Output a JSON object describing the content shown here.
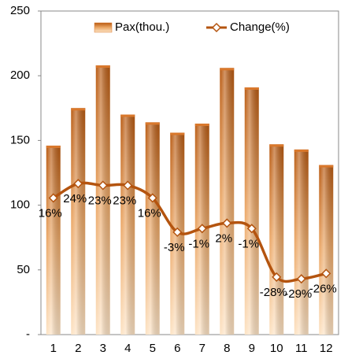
{
  "chart_data": {
    "type": "bar-line",
    "categories": [
      "1",
      "2",
      "3",
      "4",
      "5",
      "6",
      "7",
      "8",
      "9",
      "10",
      "11",
      "12"
    ],
    "series": [
      {
        "name": "Pax(thou.)",
        "type": "bar",
        "color": "#d9782c",
        "values": [
          146,
          175,
          208,
          170,
          164,
          156,
          163,
          206,
          191,
          147,
          143,
          131
        ]
      },
      {
        "name": "Change(%)",
        "type": "line",
        "axis": "y2",
        "color": "#b4540f",
        "values": [
          16,
          24,
          23,
          23,
          16,
          -3,
          -1,
          2,
          -1,
          -28,
          -29,
          -26
        ],
        "value_labels": [
          "16%",
          "24%",
          "23%",
          "23%",
          "16%",
          "-3%",
          "-1%",
          "2%",
          "-1%",
          "-28%",
          "-29%",
          "-26%"
        ]
      }
    ],
    "ylim": [
      0,
      250
    ],
    "yticks": [
      {
        "value": 0,
        "label": "-"
      },
      50,
      100,
      150,
      200,
      250
    ],
    "y2lim": [
      -60,
      120
    ],
    "legend": "top"
  }
}
